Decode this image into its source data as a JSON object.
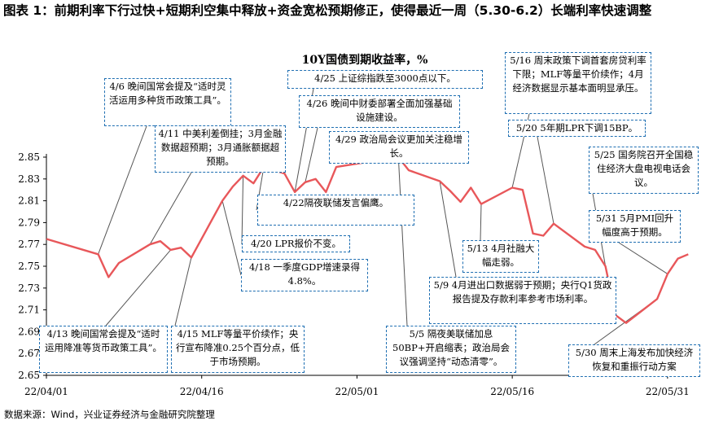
{
  "figure_title": "图表 1：前期利率下行过快+短期利空集中释放+资金宽松预期修正，使得最近一周（5.30-6.2）长端利率快速调整",
  "source": "数据来源：Wind，兴业证券经济与金融研究院整理",
  "chart_data": {
    "type": "line",
    "title": "10Y国债到期收益率，%",
    "ylim": [
      2.65,
      2.85
    ],
    "yticks": [
      "2.65",
      "2.67",
      "2.69",
      "2.71",
      "2.73",
      "2.75",
      "2.77",
      "2.79",
      "2.81",
      "2.83",
      "2.85"
    ],
    "xticks": [
      "22/04/01",
      "22/04/16",
      "22/05/01",
      "22/05/16",
      "22/05/31"
    ],
    "line_color": "#e8575a",
    "annot_color": "#1f6fb2",
    "series": [
      {
        "x": [
          "2022-04-01",
          "2022-04-06",
          "2022-04-07",
          "2022-04-08",
          "2022-04-11",
          "2022-04-12",
          "2022-04-13",
          "2022-04-14",
          "2022-04-15",
          "2022-04-18",
          "2022-04-19",
          "2022-04-20",
          "2022-04-21",
          "2022-04-22",
          "2022-04-24",
          "2022-04-25",
          "2022-04-26",
          "2022-04-27",
          "2022-04-28",
          "2022-04-29",
          "2022-05-05",
          "2022-05-06",
          "2022-05-09",
          "2022-05-10",
          "2022-05-11",
          "2022-05-12",
          "2022-05-13",
          "2022-05-16",
          "2022-05-17",
          "2022-05-18",
          "2022-05-19",
          "2022-05-20",
          "2022-05-23",
          "2022-05-24",
          "2022-05-25",
          "2022-05-26",
          "2022-05-27",
          "2022-05-30",
          "2022-05-31",
          "2022-06-01",
          "2022-06-02"
        ],
        "values": [
          2.775,
          2.761,
          2.74,
          2.753,
          2.77,
          2.773,
          2.765,
          2.767,
          2.758,
          2.81,
          2.823,
          2.833,
          2.826,
          2.841,
          2.835,
          2.818,
          2.827,
          2.83,
          2.818,
          2.841,
          2.85,
          2.838,
          2.828,
          2.819,
          2.809,
          2.822,
          2.807,
          2.822,
          2.82,
          2.78,
          2.778,
          2.789,
          2.768,
          2.765,
          2.75,
          2.705,
          2.698,
          2.72,
          2.743,
          2.757,
          2.761
        ]
      }
    ]
  },
  "annotations": [
    {
      "id": "a1",
      "text": "4/6 晚间国常会提及“适时灵活运用多种货币政策工具”。"
    },
    {
      "id": "a2",
      "text": "4/11 中美利差倒挂；3月金融数据超预期；3月通胀额据超预期。"
    },
    {
      "id": "a3",
      "text": "4/25 上证综指跌至3000点以下。"
    },
    {
      "id": "a4",
      "text": "4/26 晚间中财委部署全面加强基础设施建设。"
    },
    {
      "id": "a5",
      "text": "4/29 政治局会议更加关注稳增长。"
    },
    {
      "id": "a6",
      "text": "4/22隔夜联储发言偏鹰。"
    },
    {
      "id": "a7",
      "text": "4/20 LPR报价不变。"
    },
    {
      "id": "a8",
      "text": "4/18 一季度GDP增速录得4.8%。"
    },
    {
      "id": "a9",
      "text": "4/13 晚间国常会提及“适时运用降准等货币政策工具”。"
    },
    {
      "id": "a10",
      "text": "4/15 MLF等量平价续作；央行宣布降准0.25个百分点，低于市场预期。"
    },
    {
      "id": "a11",
      "text": "5/16 周末政策下调首套房贷利率下限；MLF等量平价续作；4月经济数据显示基本面明显承压。"
    },
    {
      "id": "a12",
      "text": "5/20 5年期LPR下调15BP。"
    },
    {
      "id": "a13",
      "text": "5/25 国务院召开全国稳住经济大盘电视电话会议。"
    },
    {
      "id": "a14",
      "text": "5/31 5月PMI回升幅度高于预期。"
    },
    {
      "id": "a15",
      "text": "5/13 4月社融大幅走弱。"
    },
    {
      "id": "a16",
      "text": "5/9 4月进出口数据弱于预期；央行Q1货政报告提及存款利率参考市场利率。"
    },
    {
      "id": "a17",
      "text": "5/5 隔夜美联储加息50BP+开启缩表；政治局会议强调坚持“动态清零”。"
    },
    {
      "id": "a18",
      "text": "5/30 周末上海发布加快经济恢复和重振行动方案"
    }
  ]
}
